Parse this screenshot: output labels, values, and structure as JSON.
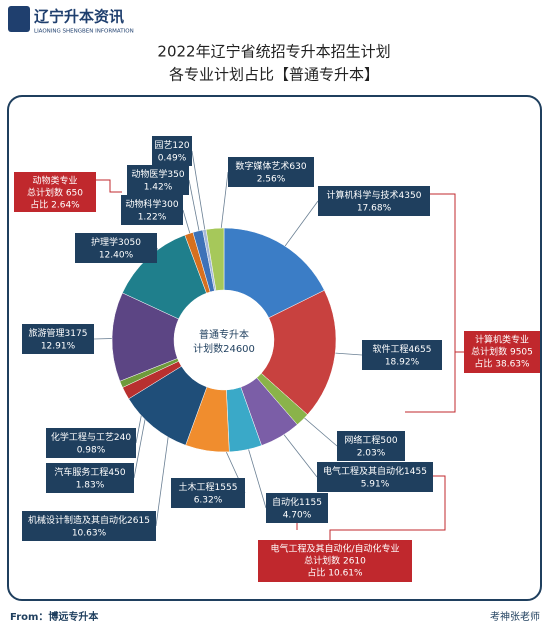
{
  "header": {
    "logo": "辽宁升本资讯",
    "logo_sub": "LIAONING SHENGBEN INFORMATION"
  },
  "chart_data": {
    "type": "pie",
    "title": [
      "2022年辽宁省统招专升本招生计划",
      "各专业计划占比【普通专升本】"
    ],
    "center_label": [
      "普通专升本",
      "计划数24600"
    ],
    "categories": [
      "计算机科学与技术",
      "软件工程",
      "网络工程",
      "电气工程及其自动化",
      "自动化",
      "土木工程",
      "机械设计制造及其自动化",
      "汽车服务工程",
      "化学工程与工艺",
      "旅游管理",
      "护理学",
      "动物科学",
      "动物医学",
      "园艺",
      "数字媒体艺术"
    ],
    "values": [
      4350,
      4655,
      500,
      1455,
      1155,
      1555,
      2615,
      450,
      240,
      3175,
      3050,
      300,
      350,
      120,
      630
    ],
    "percent_labels": [
      "17.68%",
      "18.92%",
      "2.03%",
      "5.91%",
      "4.70%",
      "6.32%",
      "10.63%",
      "1.83%",
      "0.98%",
      "12.91%",
      "12.40%",
      "1.22%",
      "1.42%",
      "0.49%",
      "2.56%"
    ],
    "colors": [
      "#3b7dc6",
      "#c8413f",
      "#8ab34a",
      "#7b5ea7",
      "#3aa9c8",
      "#f08d2e",
      "#1f4e79",
      "#b8302f",
      "#6e9a3b",
      "#5c4584",
      "#1f7f8c",
      "#d6701f",
      "#3d72b8",
      "#a7b9d8",
      "#a6c85a"
    ],
    "groups": [
      [
        "动物类专业",
        "总计划数 650",
        "占比 2.64%"
      ],
      [
        "计算机类专业",
        "总计划数 9505",
        "占比 38.63%"
      ],
      [
        "电气工程及其自动化/自动化专业",
        "总计划数 2610",
        "占比 10.61%"
      ]
    ]
  },
  "footer": {
    "source": "From：博远专升本",
    "author": "考神张老师"
  }
}
